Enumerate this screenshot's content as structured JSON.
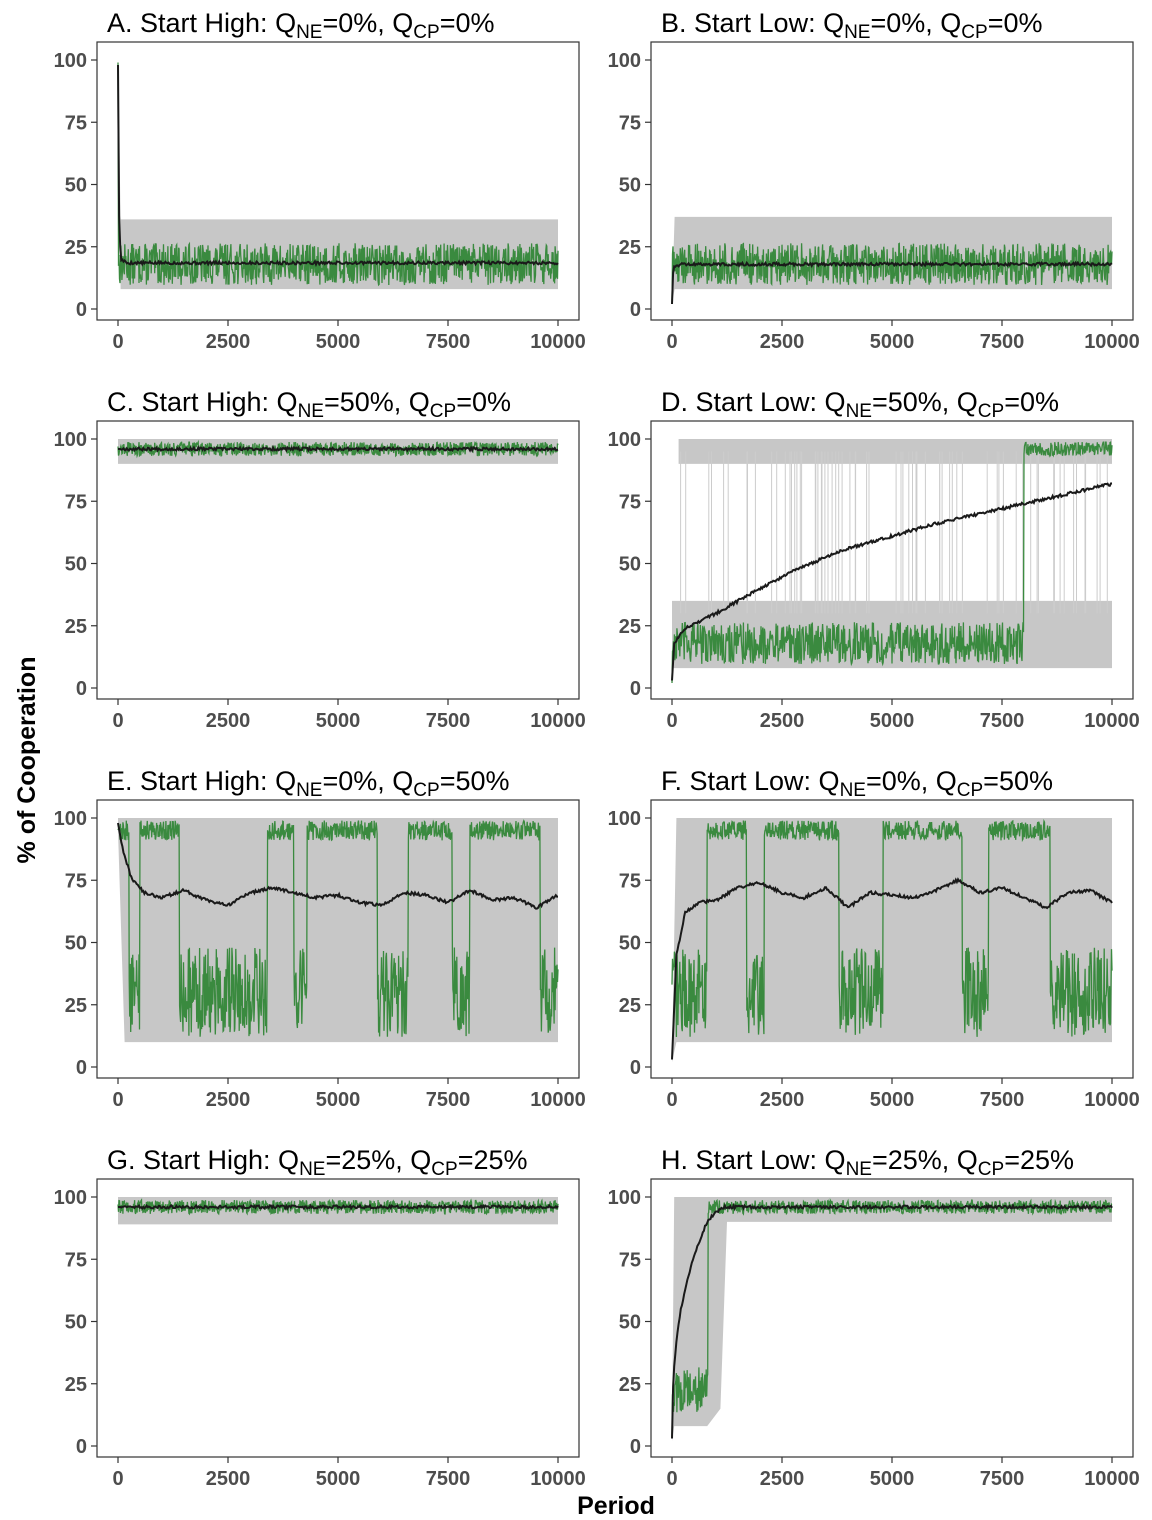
{
  "figure": {
    "ylabel": "% of Cooperation",
    "xlabel": "Period"
  },
  "colors": {
    "band": "#bdbdbd",
    "band_line": "#cccccc",
    "green": "#3a8a3f",
    "mean": "#1a1a1a",
    "panel_border": "#333333",
    "tick_text": "#4d4d4d"
  },
  "chart_data": [
    {
      "id": "A",
      "type": "line",
      "title": {
        "prefix": "A. Start High: Q",
        "sub1": "NE",
        "mid": "=0%, Q",
        "sub2": "CP",
        "suffix": "=0%"
      },
      "xlim": [
        0,
        10000
      ],
      "ylim": [
        0,
        100
      ],
      "xticks": [
        0,
        2500,
        5000,
        7500,
        10000
      ],
      "yticks": [
        0,
        25,
        50,
        75,
        100
      ],
      "mean_series": {
        "x": [
          0,
          20,
          60,
          200,
          1000,
          2500,
          5000,
          7500,
          10000
        ],
        "y": [
          98,
          40,
          20,
          18.5,
          18.5,
          18.5,
          18.5,
          18.5,
          18.5
        ]
      },
      "range_band": {
        "x": [
          0,
          60,
          10000
        ],
        "low": [
          97,
          8,
          8
        ],
        "high": [
          100,
          36,
          36
        ]
      },
      "example_run": {
        "start": 99,
        "level": 18,
        "noise": 6,
        "note": "noisy single run around 18%"
      }
    },
    {
      "id": "B",
      "type": "line",
      "title": {
        "prefix": "B. Start Low: Q",
        "sub1": "NE",
        "mid": "=0%, Q",
        "sub2": "CP",
        "suffix": "=0%"
      },
      "xlim": [
        0,
        10000
      ],
      "ylim": [
        0,
        100
      ],
      "xticks": [
        0,
        2500,
        5000,
        7500,
        10000
      ],
      "yticks": [
        0,
        25,
        50,
        75,
        100
      ],
      "mean_series": {
        "x": [
          0,
          30,
          200,
          1000,
          2500,
          5000,
          7500,
          10000
        ],
        "y": [
          2,
          17,
          18,
          18,
          18,
          18,
          18,
          18
        ]
      },
      "range_band": {
        "x": [
          0,
          60,
          10000
        ],
        "low": [
          2,
          8,
          8
        ],
        "high": [
          3,
          37,
          37
        ]
      },
      "example_run": {
        "start": 2,
        "level": 18,
        "noise": 6
      }
    },
    {
      "id": "C",
      "type": "line",
      "title": {
        "prefix": "C. Start High: Q",
        "sub1": "NE",
        "mid": "=50%, Q",
        "sub2": "CP",
        "suffix": "=0%"
      },
      "xlim": [
        0,
        10000
      ],
      "ylim": [
        0,
        100
      ],
      "xticks": [
        0,
        2500,
        5000,
        7500,
        10000
      ],
      "yticks": [
        0,
        25,
        50,
        75,
        100
      ],
      "mean_series": {
        "x": [
          0,
          2500,
          5000,
          7500,
          10000
        ],
        "y": [
          96,
          96,
          96,
          96,
          96
        ]
      },
      "range_band": {
        "x": [
          0,
          10000
        ],
        "low": [
          90,
          90
        ],
        "high": [
          100,
          100
        ]
      },
      "example_run": {
        "start": 97,
        "level": 96,
        "noise": 2
      }
    },
    {
      "id": "D",
      "type": "line",
      "title": {
        "prefix": "D. Start Low: Q",
        "sub1": "NE",
        "mid": "=50%, Q",
        "sub2": "CP",
        "suffix": "=0%"
      },
      "xlim": [
        0,
        10000
      ],
      "ylim": [
        0,
        100
      ],
      "xticks": [
        0,
        2500,
        5000,
        7500,
        10000
      ],
      "yticks": [
        0,
        25,
        50,
        75,
        100
      ],
      "mean_series": {
        "x": [
          0,
          50,
          300,
          1000,
          2000,
          3000,
          4000,
          5000,
          6000,
          7000,
          8000,
          9000,
          10000
        ],
        "y": [
          3,
          18,
          24,
          30,
          40,
          49,
          56,
          61,
          66,
          70,
          74,
          78,
          82
        ]
      },
      "range_bands": [
        {
          "x": [
            0,
            10000
          ],
          "low": [
            8,
            8
          ],
          "high": [
            35,
            35
          ]
        },
        {
          "x": [
            150,
            10000
          ],
          "low": [
            90,
            90
          ],
          "high": [
            100,
            100
          ]
        }
      ],
      "example_run": {
        "start": 2,
        "level": 18,
        "noise": 6,
        "switch_at": 8000,
        "level_after": 96,
        "noise_after": 2
      }
    },
    {
      "id": "E",
      "type": "line",
      "title": {
        "prefix": "E. Start High: Q",
        "sub1": "NE",
        "mid": "=0%, Q",
        "sub2": "CP",
        "suffix": "=50%"
      },
      "xlim": [
        0,
        10000
      ],
      "ylim": [
        0,
        100
      ],
      "xticks": [
        0,
        2500,
        5000,
        7500,
        10000
      ],
      "yticks": [
        0,
        25,
        50,
        75,
        100
      ],
      "mean_series": {
        "x": [
          0,
          100,
          300,
          600,
          1000,
          1500,
          2000,
          2500,
          3000,
          3500,
          4000,
          4500,
          5000,
          5500,
          6000,
          6500,
          7000,
          7500,
          8000,
          8500,
          9000,
          9500,
          10000
        ],
        "y": [
          98,
          88,
          76,
          70,
          68,
          71,
          67,
          65,
          70,
          72,
          70,
          68,
          69,
          66,
          65,
          70,
          69,
          66,
          71,
          67,
          68,
          64,
          69
        ]
      },
      "range_band": {
        "x": [
          0,
          150,
          10000
        ],
        "low": [
          95,
          10,
          10
        ],
        "high": [
          100,
          100,
          100
        ]
      },
      "example_run": {
        "segments": [
          [
            0,
            250,
            "high"
          ],
          [
            250,
            500,
            "low"
          ],
          [
            500,
            1400,
            "high"
          ],
          [
            1400,
            3400,
            "low"
          ],
          [
            3400,
            4000,
            "high"
          ],
          [
            4000,
            4300,
            "low"
          ],
          [
            4300,
            5900,
            "high"
          ],
          [
            5900,
            6600,
            "low"
          ],
          [
            6600,
            7600,
            "high"
          ],
          [
            7600,
            8000,
            "low"
          ],
          [
            8000,
            9600,
            "high"
          ],
          [
            9600,
            10000,
            "low"
          ]
        ]
      }
    },
    {
      "id": "F",
      "type": "line",
      "title": {
        "prefix": "F. Start Low: Q",
        "sub1": "NE",
        "mid": "=0%, Q",
        "sub2": "CP",
        "suffix": "=50%"
      },
      "xlim": [
        0,
        10000
      ],
      "ylim": [
        0,
        100
      ],
      "xticks": [
        0,
        2500,
        5000,
        7500,
        10000
      ],
      "yticks": [
        0,
        25,
        50,
        75,
        100
      ],
      "mean_series": {
        "x": [
          0,
          100,
          300,
          600,
          1000,
          1500,
          2000,
          2500,
          3000,
          3500,
          4000,
          4500,
          5000,
          5500,
          6000,
          6500,
          7000,
          7500,
          8000,
          8500,
          9000,
          9500,
          10000
        ],
        "y": [
          3,
          45,
          62,
          66,
          67,
          72,
          74,
          70,
          68,
          72,
          64,
          70,
          69,
          68,
          71,
          75,
          70,
          72,
          68,
          64,
          70,
          71,
          66
        ]
      },
      "range_band": {
        "x": [
          0,
          100,
          10000
        ],
        "low": [
          2,
          10,
          10
        ],
        "high": [
          5,
          100,
          100
        ]
      },
      "example_run": {
        "segments": [
          [
            0,
            800,
            "low"
          ],
          [
            800,
            1700,
            "high"
          ],
          [
            1700,
            2100,
            "low"
          ],
          [
            2100,
            3800,
            "high"
          ],
          [
            3800,
            4800,
            "low"
          ],
          [
            4800,
            6600,
            "high"
          ],
          [
            6600,
            7200,
            "low"
          ],
          [
            7200,
            8600,
            "high"
          ],
          [
            8600,
            10000,
            "low"
          ]
        ]
      }
    },
    {
      "id": "G",
      "type": "line",
      "title": {
        "prefix": "G. Start High: Q",
        "sub1": "NE",
        "mid": "=25%, Q",
        "sub2": "CP",
        "suffix": "=25%"
      },
      "xlim": [
        0,
        10000
      ],
      "ylim": [
        0,
        100
      ],
      "xticks": [
        0,
        2500,
        5000,
        7500,
        10000
      ],
      "yticks": [
        0,
        25,
        50,
        75,
        100
      ],
      "mean_series": {
        "x": [
          0,
          2500,
          5000,
          7500,
          10000
        ],
        "y": [
          96,
          96,
          96,
          96,
          96
        ]
      },
      "range_band": {
        "x": [
          0,
          10000
        ],
        "low": [
          89,
          89
        ],
        "high": [
          100,
          100
        ]
      },
      "example_run": {
        "start": 97,
        "level": 96,
        "noise": 2
      }
    },
    {
      "id": "H",
      "type": "line",
      "title": {
        "prefix": "H. Start Low: Q",
        "sub1": "NE",
        "mid": "=25%, Q",
        "sub2": "CP",
        "suffix": "=25%"
      },
      "xlim": [
        0,
        10000
      ],
      "ylim": [
        0,
        100
      ],
      "xticks": [
        0,
        2500,
        5000,
        7500,
        10000
      ],
      "yticks": [
        0,
        25,
        50,
        75,
        100
      ],
      "mean_series": {
        "x": [
          0,
          30,
          100,
          200,
          300,
          400,
          500,
          600,
          700,
          800,
          900,
          1000,
          1100,
          1200,
          1500,
          2500,
          5000,
          7500,
          10000
        ],
        "y": [
          3,
          28,
          42,
          55,
          63,
          70,
          76,
          81,
          86,
          90,
          92,
          94,
          95,
          96,
          96,
          96,
          96,
          96,
          96
        ]
      },
      "range_band": {
        "x": [
          0,
          50,
          800,
          1100,
          1250,
          10000
        ],
        "low": [
          2,
          8,
          8,
          15,
          90,
          90
        ],
        "high": [
          5,
          100,
          100,
          100,
          100,
          100
        ]
      },
      "example_run": {
        "start": 3,
        "level": 22,
        "noise": 7,
        "switch_at": 820,
        "level_after": 96,
        "noise_after": 2
      }
    }
  ]
}
